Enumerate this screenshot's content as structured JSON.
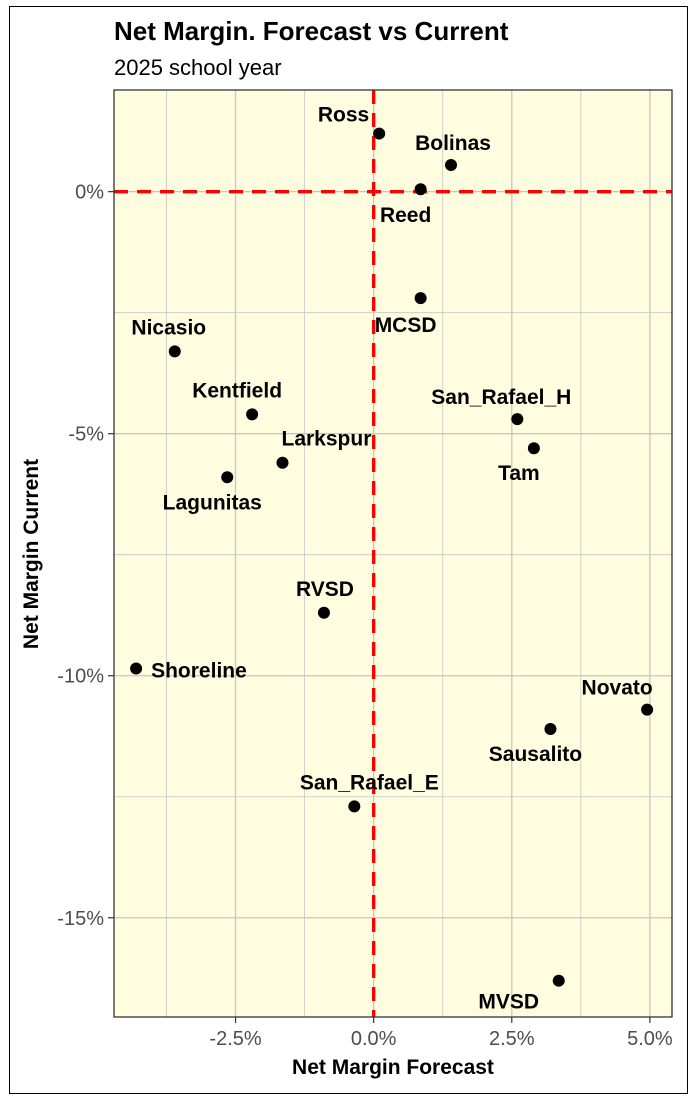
{
  "chart_data": {
    "type": "scatter",
    "title": "Net Margin. Forecast vs Current",
    "subtitle": "2025 school year",
    "xlabel": "Net Margin Forecast",
    "ylabel": "Net Margin Current",
    "xlim": [
      -4.7,
      5.4
    ],
    "ylim": [
      -17.05,
      2.1
    ],
    "x_ticks": [
      -2.5,
      0,
      2.5,
      5
    ],
    "x_tick_labels": [
      "-2.5%",
      "0.0%",
      "2.5%",
      "5.0%"
    ],
    "y_ticks": [
      0,
      -5,
      -10,
      -15
    ],
    "y_tick_labels": [
      "0%",
      "-5%",
      "-10%",
      "-15%"
    ],
    "reference_lines": {
      "x": 0,
      "y": 0,
      "color": "#ff0000",
      "style": "dashed"
    },
    "panel_background": "#fefde0",
    "grid": true,
    "point_color": "#000000",
    "points": [
      {
        "label": "Ross",
        "x": 0.1,
        "y": 1.2
      },
      {
        "label": "Bolinas",
        "x": 1.4,
        "y": 0.55
      },
      {
        "label": "Reed",
        "x": 0.85,
        "y": 0.05
      },
      {
        "label": "MCSD",
        "x": 0.85,
        "y": -2.2
      },
      {
        "label": "Nicasio",
        "x": -3.6,
        "y": -3.3
      },
      {
        "label": "Kentfield",
        "x": -2.2,
        "y": -4.6
      },
      {
        "label": "San_Rafael_H",
        "x": 2.6,
        "y": -4.7
      },
      {
        "label": "Tam",
        "x": 2.9,
        "y": -5.3
      },
      {
        "label": "Larkspur",
        "x": -1.65,
        "y": -5.6
      },
      {
        "label": "Lagunitas",
        "x": -2.65,
        "y": -5.9
      },
      {
        "label": "RVSD",
        "x": -0.9,
        "y": -8.7
      },
      {
        "label": "Shoreline",
        "x": -4.3,
        "y": -9.85
      },
      {
        "label": "Novato",
        "x": 4.95,
        "y": -10.7
      },
      {
        "label": "Sausalito",
        "x": 3.2,
        "y": -11.1
      },
      {
        "label": "San_Rafael_E",
        "x": -0.35,
        "y": -12.7
      },
      {
        "label": "MVSD",
        "x": 3.35,
        "y": -16.3
      }
    ]
  }
}
